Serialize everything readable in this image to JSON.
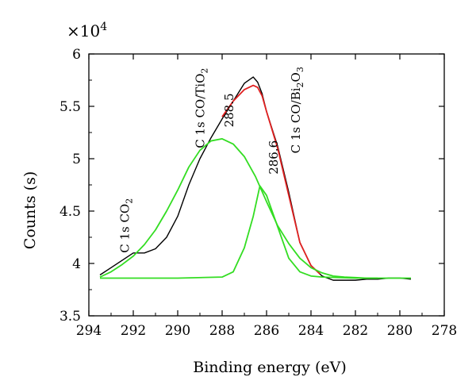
{
  "chart_data": {
    "type": "line",
    "xlabel": "Binding energy (eV)",
    "ylabel": "Counts (s)",
    "y_multiplier": "×10",
    "y_multiplier_exp": "4",
    "xlim": [
      294,
      278
    ],
    "ylim": [
      3.5,
      6
    ],
    "x_ticks": [
      294,
      292,
      290,
      288,
      286,
      284,
      282,
      280,
      278
    ],
    "y_ticks": [
      3.5,
      4,
      4.5,
      5,
      5.5,
      6
    ],
    "y_tick_labels": [
      "3.5",
      "4",
      "4.5",
      "5",
      "5.5",
      "6"
    ],
    "grid": false,
    "series": [
      {
        "color": "#000000",
        "x": [
          293.5,
          293.0,
          292.5,
          292.0,
          291.5,
          291.0,
          290.5,
          290.0,
          289.5,
          289.0,
          288.5,
          288.0,
          287.5,
          287.0,
          286.6,
          286.4,
          286.2,
          286.0,
          285.5,
          285.0,
          284.5,
          284.0,
          283.5,
          283.0,
          282.5,
          282.0,
          281.5,
          281.0,
          280.5,
          280.0,
          279.5
        ],
        "y": [
          3.89,
          3.96,
          4.03,
          4.1,
          4.1,
          4.14,
          4.25,
          4.45,
          4.75,
          5.0,
          5.2,
          5.38,
          5.55,
          5.72,
          5.78,
          5.73,
          5.62,
          5.45,
          5.12,
          4.68,
          4.2,
          3.98,
          3.88,
          3.84,
          3.84,
          3.84,
          3.85,
          3.85,
          3.86,
          3.86,
          3.85
        ]
      },
      {
        "color": "#e02020",
        "x": [
          288.0,
          287.5,
          287.0,
          286.6,
          286.4,
          286.2,
          286.0,
          285.5,
          285.0,
          284.5,
          284.0,
          283.6
        ],
        "y": [
          5.4,
          5.55,
          5.66,
          5.7,
          5.68,
          5.6,
          5.45,
          5.1,
          4.65,
          4.2,
          3.98,
          3.9
        ]
      },
      {
        "color": "#33dd22",
        "x": [
          293.5,
          293.0,
          292.5,
          292.0,
          291.5,
          291.0,
          290.5,
          290.0,
          289.5,
          289.0,
          288.5,
          288.0,
          287.5,
          287.0,
          286.5,
          286.0,
          285.5,
          285.0,
          284.5,
          284.0,
          283.5,
          283.0,
          282.5,
          282.0,
          281.5,
          281.0
        ],
        "y": [
          3.87,
          3.92,
          3.99,
          4.07,
          4.18,
          4.32,
          4.5,
          4.7,
          4.92,
          5.08,
          5.17,
          5.19,
          5.14,
          5.02,
          4.83,
          4.59,
          4.36,
          4.19,
          4.05,
          3.96,
          3.91,
          3.88,
          3.87,
          3.865,
          3.86,
          3.86
        ]
      },
      {
        "color": "#33dd22",
        "x": [
          293.5,
          290.0,
          288.0,
          287.5,
          287.0,
          286.6,
          286.3,
          286.0,
          285.5,
          285.0,
          284.5,
          284.0,
          283.5,
          282.0,
          280.0,
          279.5
        ],
        "y": [
          3.86,
          3.86,
          3.87,
          3.92,
          4.15,
          4.45,
          4.74,
          4.65,
          4.35,
          4.05,
          3.92,
          3.88,
          3.87,
          3.86,
          3.86,
          3.86
        ]
      }
    ],
    "annotations": [
      {
        "text": "C 1s CO",
        "sub": "2",
        "tail": "",
        "x": 292.2,
        "y": 4.1
      },
      {
        "text": "C 1s CO/TiO",
        "sub": "2",
        "tail": "",
        "x": 288.8,
        "y": 5.1
      },
      {
        "text": "288.5",
        "sub": "",
        "tail": "",
        "x": 287.5,
        "y": 5.3
      },
      {
        "text": "286.6",
        "sub": "",
        "tail": "",
        "x": 285.5,
        "y": 4.85
      },
      {
        "text": "C 1s CO/Bi",
        "sub": "2",
        "tail": "O",
        "tail_sub": "3",
        "x": 284.5,
        "y": 5.05
      }
    ]
  }
}
